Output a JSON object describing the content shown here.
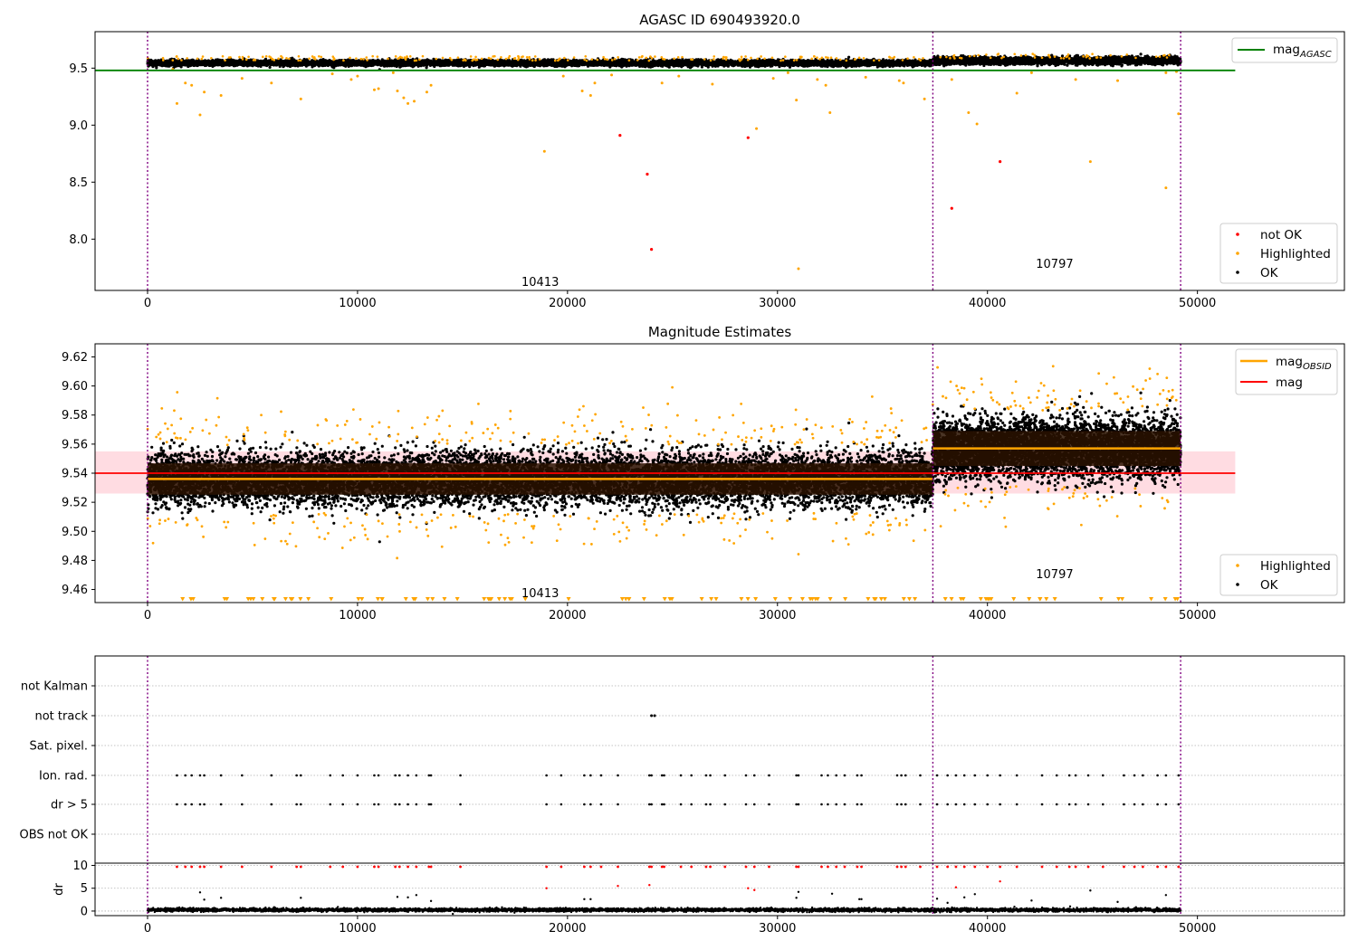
{
  "colors": {
    "ok": "#000000",
    "highlighted": "#ffa500",
    "not_ok": "#ff0000",
    "mag_agasc": "#008000",
    "mag_obsid": "#ffa500",
    "mag": "#ff0000",
    "obs_boundary": "#800080",
    "band": "#ffc0cb"
  },
  "chart_data": [
    {
      "type": "scatter",
      "title": "AGASC ID 690493920.0",
      "xlim": [
        -2500,
        57000
      ],
      "ylim": [
        7.55,
        9.82
      ],
      "x_ticks": [
        0,
        10000,
        20000,
        30000,
        40000,
        50000
      ],
      "y_ticks": [
        8.0,
        8.5,
        9.0,
        9.5
      ],
      "x_tick_labels": [
        "0",
        "10000",
        "20000",
        "30000",
        "40000",
        "50000"
      ],
      "y_tick_labels": [
        "8.0",
        "8.5",
        "9.0",
        "9.5"
      ],
      "obs_boundaries": [
        0,
        37400,
        49200
      ],
      "obs_labels": [
        {
          "text": "10413",
          "x": 18700,
          "y": 7.63
        },
        {
          "text": "10797",
          "x": 43200,
          "y": 7.79
        }
      ],
      "lines": [
        {
          "name": "mag_AGASC",
          "y": 9.48,
          "x_range": [
            -2500,
            51800
          ]
        }
      ],
      "ok_band": [
        {
          "x_range": [
            0,
            37400
          ],
          "center": 9.545,
          "spread": 0.012
        },
        {
          "x_range": [
            37400,
            49200
          ],
          "center": 9.565,
          "spread": 0.015
        }
      ],
      "highlighted_points": [
        [
          1200,
          9.49
        ],
        [
          1400,
          9.19
        ],
        [
          1800,
          9.37
        ],
        [
          2100,
          9.35
        ],
        [
          2500,
          9.09
        ],
        [
          2700,
          9.29
        ],
        [
          3500,
          9.26
        ],
        [
          4500,
          9.41
        ],
        [
          5900,
          9.37
        ],
        [
          7300,
          9.23
        ],
        [
          8800,
          9.45
        ],
        [
          9700,
          9.4
        ],
        [
          10000,
          9.43
        ],
        [
          10800,
          9.31
        ],
        [
          11000,
          9.32
        ],
        [
          11700,
          9.46
        ],
        [
          11900,
          9.3
        ],
        [
          12200,
          9.24
        ],
        [
          12400,
          9.19
        ],
        [
          12700,
          9.21
        ],
        [
          13500,
          9.35
        ],
        [
          13300,
          9.29
        ],
        [
          18900,
          8.77
        ],
        [
          19800,
          9.43
        ],
        [
          20700,
          9.3
        ],
        [
          21100,
          9.26
        ],
        [
          21300,
          9.37
        ],
        [
          22100,
          9.44
        ],
        [
          24500,
          9.37
        ],
        [
          25300,
          9.43
        ],
        [
          26900,
          9.36
        ],
        [
          29000,
          8.97
        ],
        [
          29800,
          9.41
        ],
        [
          30500,
          9.46
        ],
        [
          30900,
          9.22
        ],
        [
          31000,
          7.74
        ],
        [
          31900,
          9.4
        ],
        [
          32300,
          9.35
        ],
        [
          32500,
          9.11
        ],
        [
          34200,
          9.42
        ],
        [
          35800,
          9.39
        ],
        [
          36000,
          9.37
        ],
        [
          37000,
          9.23
        ],
        [
          38300,
          9.4
        ],
        [
          39100,
          9.11
        ],
        [
          39500,
          9.01
        ],
        [
          41400,
          9.28
        ],
        [
          42100,
          9.46
        ],
        [
          44200,
          9.4
        ],
        [
          44900,
          8.68
        ],
        [
          46200,
          9.39
        ],
        [
          48500,
          9.46
        ],
        [
          48500,
          8.45
        ],
        [
          49100,
          9.1
        ],
        [
          49000,
          9.47
        ]
      ],
      "not_ok_points": [
        [
          22500,
          8.91
        ],
        [
          23800,
          8.57
        ],
        [
          24000,
          7.91
        ],
        [
          28600,
          8.89
        ],
        [
          38300,
          8.27
        ],
        [
          40600,
          8.68
        ]
      ],
      "legend_top": [
        "mag_AGASC"
      ],
      "legend_bottom": [
        "not OK",
        "Highlighted",
        "OK"
      ]
    },
    {
      "type": "scatter",
      "title": "Magnitude Estimates",
      "xlim": [
        -2500,
        57000
      ],
      "ylim": [
        9.451,
        9.629
      ],
      "x_ticks": [
        0,
        10000,
        20000,
        30000,
        40000,
        50000
      ],
      "y_ticks": [
        9.46,
        9.48,
        9.5,
        9.52,
        9.54,
        9.56,
        9.58,
        9.6,
        9.62
      ],
      "x_tick_labels": [
        "0",
        "10000",
        "20000",
        "30000",
        "40000",
        "50000"
      ],
      "y_tick_labels": [
        "9.46",
        "9.48",
        "9.50",
        "9.52",
        "9.54",
        "9.56",
        "9.58",
        "9.60",
        "9.62"
      ],
      "obs_boundaries": [
        0,
        37400,
        49200
      ],
      "obs_labels": [
        {
          "text": "10413",
          "x": 18700,
          "y": 9.458
        },
        {
          "text": "10797",
          "x": 43200,
          "y": 9.471
        }
      ],
      "mag": 9.54,
      "mag_band": [
        9.526,
        9.555
      ],
      "mag_x_range": [
        -2500,
        51800
      ],
      "mag_obsid": [
        {
          "x_range": [
            0,
            37400
          ],
          "y": 9.536
        },
        {
          "x_range": [
            37400,
            49200
          ],
          "y": 9.557
        }
      ],
      "ok_band": [
        {
          "x_range": [
            0,
            37400
          ],
          "center": 9.536,
          "spread": 0.009
        },
        {
          "x_range": [
            37400,
            49200
          ],
          "center": 9.557,
          "spread": 0.01
        }
      ],
      "highlighted_low_markers_y": 9.4535,
      "legend_top": [
        "mag_OBSID",
        "mag"
      ],
      "legend_bottom": [
        "Highlighted",
        "OK"
      ]
    },
    {
      "type": "scatter",
      "title": "",
      "xlim": [
        -2500,
        57000
      ],
      "flag_rows": [
        "not Kalman",
        "not track",
        "Sat. pixel.",
        "Ion. rad.",
        "dr > 5",
        "OBS not OK"
      ],
      "dr_ylim": [
        -1,
        10.5
      ],
      "dr_ticks": [
        0,
        5,
        10
      ],
      "dr_tick_labels": [
        "0",
        "5",
        "10"
      ],
      "dr_ylabel": "dr",
      "x_ticks": [
        0,
        10000,
        20000,
        30000,
        40000,
        50000
      ],
      "x_tick_labels": [
        "0",
        "10000",
        "20000",
        "30000",
        "40000",
        "50000"
      ],
      "obs_boundaries": [
        0,
        37400,
        49200
      ],
      "ion_rad_x": [
        1400,
        1800,
        2100,
        2500,
        2700,
        3500,
        4500,
        5900,
        7100,
        7300,
        8700,
        9300,
        10000,
        10800,
        11000,
        11800,
        12000,
        12400,
        12800,
        13400,
        13500,
        14900,
        19000,
        19700,
        20800,
        21100,
        21600,
        22400,
        23900,
        24000,
        24500,
        24600,
        25400,
        25900,
        26600,
        26800,
        27500,
        28500,
        28900,
        29600,
        30900,
        31000,
        32100,
        32400,
        32800,
        33200,
        33800,
        34000,
        35700,
        35900,
        36100,
        36800,
        37600,
        38100,
        38500,
        38900,
        39400,
        40000,
        40600,
        41400,
        42600,
        43300,
        43900,
        44200,
        44800,
        45500,
        46500,
        47000,
        47400,
        48100,
        48500,
        49100
      ],
      "not_track_x": [
        24000,
        24150
      ],
      "dr_red_x": [
        1400,
        1800,
        2100,
        2500,
        2700,
        3500,
        4500,
        5900,
        7100,
        7300,
        8700,
        9300,
        10000,
        10800,
        11000,
        11800,
        12000,
        12400,
        12800,
        13400,
        13500,
        14900,
        19000,
        19700,
        20800,
        21100,
        21600,
        22400,
        23900,
        24000,
        24500,
        24600,
        25400,
        25900,
        26600,
        26800,
        27500,
        28500,
        28900,
        29600,
        30900,
        31000,
        32100,
        32400,
        32800,
        33200,
        33800,
        34000,
        35700,
        35900,
        36100,
        36800,
        37600,
        38100,
        38500,
        38900,
        39400,
        40000,
        40600,
        41400,
        42600,
        43300,
        43900,
        44200,
        44800,
        45500,
        46500,
        47000,
        47400,
        48100,
        48500,
        49100
      ],
      "dr_mid_points": [
        [
          2500,
          4.1
        ],
        [
          2700,
          2.5
        ],
        [
          3500,
          2.9
        ],
        [
          7300,
          2.9
        ],
        [
          11900,
          3.1
        ],
        [
          12400,
          3.0
        ],
        [
          12800,
          3.5
        ],
        [
          13500,
          2.2
        ],
        [
          19000,
          5.0
        ],
        [
          20800,
          2.6
        ],
        [
          21100,
          2.6
        ],
        [
          22400,
          5.5
        ],
        [
          23900,
          5.7
        ],
        [
          28600,
          5.0
        ],
        [
          28900,
          4.6
        ],
        [
          30900,
          2.9
        ],
        [
          31000,
          4.2
        ],
        [
          32600,
          3.8
        ],
        [
          33900,
          2.6
        ],
        [
          34000,
          2.6
        ],
        [
          37600,
          2.7
        ],
        [
          38100,
          1.8
        ],
        [
          38500,
          5.2
        ],
        [
          38900,
          3.0
        ],
        [
          39400,
          3.7
        ],
        [
          40600,
          6.5
        ],
        [
          42100,
          2.3
        ],
        [
          44900,
          4.5
        ],
        [
          46200,
          2.0
        ],
        [
          48500,
          3.5
        ],
        [
          49100,
          0.4
        ]
      ]
    }
  ],
  "annotations": {
    "top_label_a": "10413",
    "top_label_b": "10797",
    "mid_label_a": "10413",
    "mid_label_b": "10797"
  },
  "legends": {
    "top_upper": {
      "label_main": "mag",
      "label_sub": "AGASC"
    },
    "top_lower": {
      "not_ok": "not OK",
      "highlighted": "Highlighted",
      "ok": "OK"
    },
    "mid_upper": {
      "mag_obsid_main": "mag",
      "mag_obsid_sub": "OBSID",
      "mag": "mag"
    },
    "mid_lower": {
      "highlighted": "Highlighted",
      "ok": "OK"
    }
  }
}
